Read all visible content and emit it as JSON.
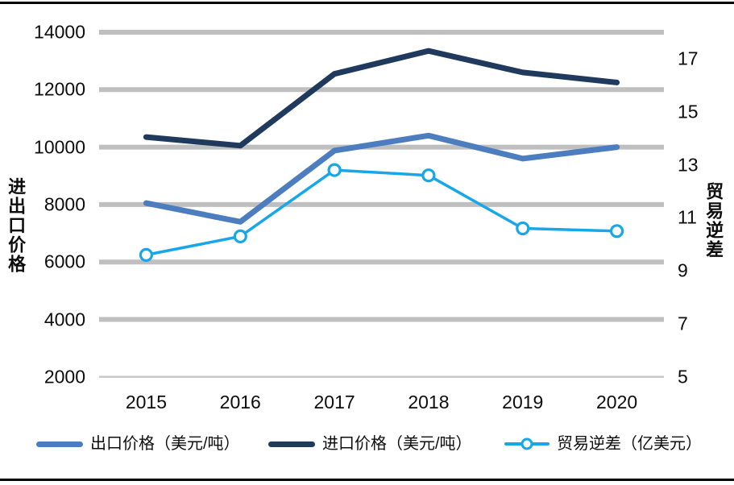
{
  "chart_data": {
    "type": "line",
    "title": "",
    "categories": [
      "2015",
      "2016",
      "2017",
      "2018",
      "2019",
      "2020"
    ],
    "series": [
      {
        "key": "export-price",
        "name": "出口价格（美元/吨）",
        "axis": "left",
        "color": "#4c7dbf",
        "stroke_width": 7,
        "marker": false,
        "values": [
          8050,
          7400,
          9880,
          10400,
          9600,
          10000
        ]
      },
      {
        "key": "import-price",
        "name": "进口价格（美元/吨）",
        "axis": "left",
        "color": "#203a5e",
        "stroke_width": 7,
        "marker": false,
        "values": [
          10350,
          10050,
          12550,
          13350,
          12600,
          12250
        ]
      },
      {
        "key": "trade-deficit",
        "name": "贸易逆差（亿美元）",
        "axis": "right",
        "color": "#17a7e8",
        "stroke_width": 3.5,
        "marker": true,
        "values": [
          9.6,
          10.3,
          12.8,
          12.6,
          10.6,
          10.5
        ]
      }
    ],
    "axes": {
      "left": {
        "label": "进出口价格",
        "min": 2000,
        "max": 14000,
        "tick_step": 2000,
        "ticks": [
          2000,
          4000,
          6000,
          8000,
          10000,
          12000,
          14000
        ]
      },
      "right": {
        "label": "贸易逆差",
        "min": 5,
        "max": 18,
        "tick_step": 2,
        "ticks": [
          5,
          7,
          9,
          11,
          13,
          15,
          17
        ]
      }
    },
    "grid": {
      "color": "#bfbfbf",
      "baseline_color": "#c9c9c9",
      "on": true
    },
    "legend_position": "bottom",
    "border_color": "#000000"
  }
}
